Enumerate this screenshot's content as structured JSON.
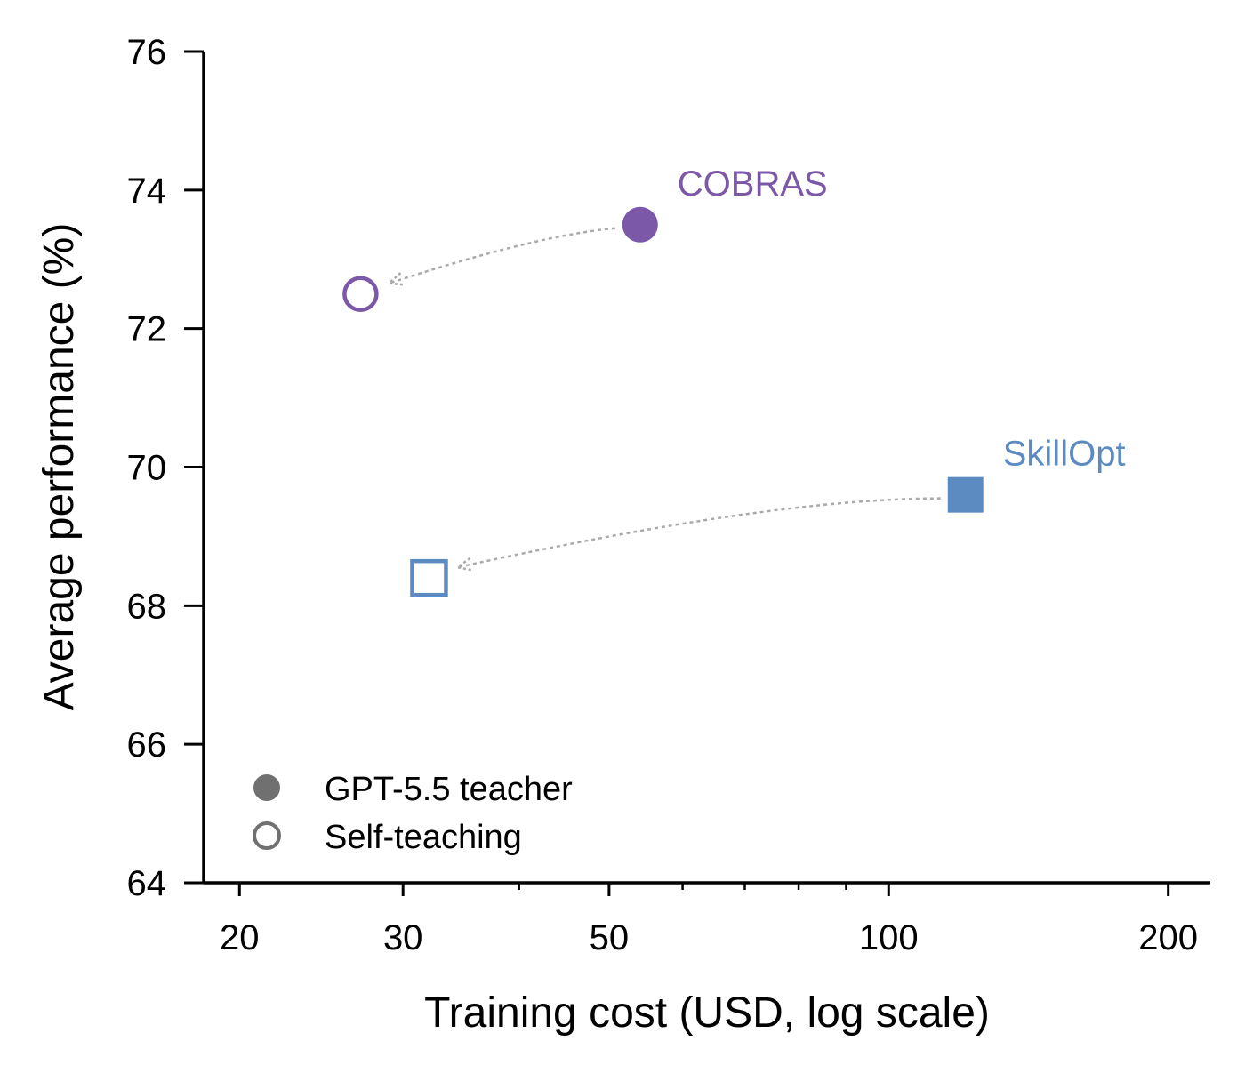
{
  "chart_data": {
    "type": "scatter",
    "x_scale": "log",
    "xlabel": "Training cost (USD, log scale)",
    "ylabel": "Average performance (%)",
    "xlim": [
      18.3,
      222
    ],
    "ylim": [
      64,
      76
    ],
    "x_ticks": [
      20,
      30,
      50,
      100,
      200
    ],
    "x_tick_labels": [
      "20",
      "30",
      "50",
      "100",
      "200"
    ],
    "x_minor_ticks": [
      40,
      60,
      70,
      80,
      90
    ],
    "y_ticks": [
      64,
      66,
      68,
      70,
      72,
      74,
      76
    ],
    "y_tick_labels": [
      "64",
      "66",
      "68",
      "70",
      "72",
      "74",
      "76"
    ],
    "grid": false,
    "series": [
      {
        "name": "COBRAS",
        "color": "#7b59a8",
        "marker": "circle",
        "points": [
          {
            "x": 54,
            "y": 73.5,
            "variant": "GPT-5.5 teacher"
          },
          {
            "x": 27,
            "y": 72.5,
            "variant": "Self-teaching"
          }
        ]
      },
      {
        "name": "SkillOpt",
        "color": "#5b8bc0",
        "marker": "square",
        "points": [
          {
            "x": 121,
            "y": 69.6,
            "variant": "GPT-5.5 teacher"
          },
          {
            "x": 32,
            "y": 68.4,
            "variant": "Self-teaching"
          }
        ]
      }
    ],
    "arrows": "dotted grey arrows from each GPT-5.5 teacher point to its Self-teaching point",
    "arrow_color": "#aaaaaa",
    "legend": {
      "placement": "lower-left",
      "entries": [
        {
          "label": "GPT-5.5 teacher",
          "style": "filled",
          "marker": "circle",
          "color": "#707070"
        },
        {
          "label": "Self-teaching",
          "style": "hollow",
          "marker": "circle",
          "color": "#707070"
        }
      ]
    }
  }
}
